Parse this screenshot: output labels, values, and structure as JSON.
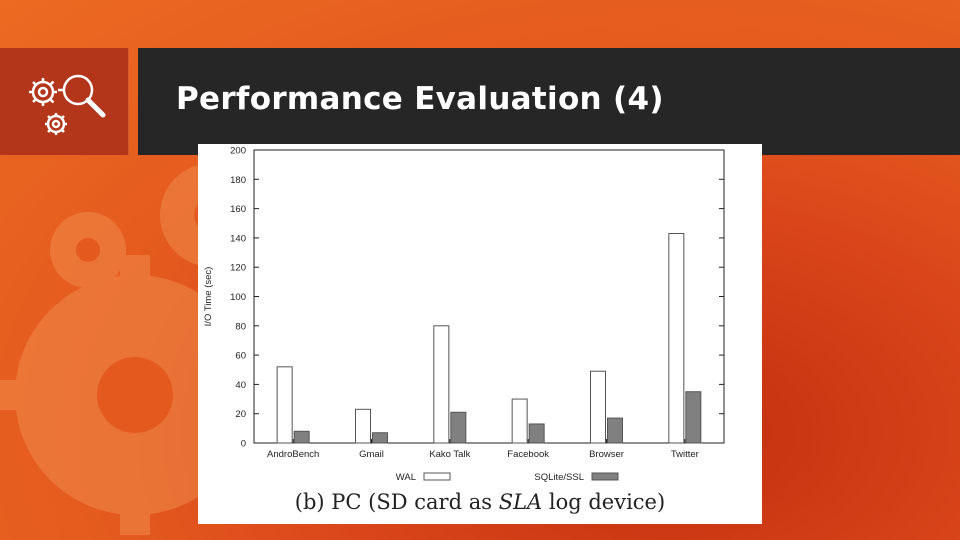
{
  "slide": {
    "title": "Performance Evaluation (4)",
    "icon": "gears-magnifier-icon",
    "colors": {
      "accent": "#e2531c",
      "title_bar": "#262626",
      "icon_box": "#b3361a"
    }
  },
  "caption": {
    "prefix": "(b) PC (SD card as ",
    "emphasis": "SLA",
    "suffix": " log device)"
  },
  "chart_data": {
    "type": "bar",
    "title": "",
    "xlabel": "",
    "ylabel": "I/O Time (sec)",
    "ylim": [
      0,
      200
    ],
    "yticks": [
      0,
      20,
      40,
      60,
      80,
      100,
      120,
      140,
      160,
      180,
      200
    ],
    "categories": [
      "AndroBench",
      "Gmail",
      "Kako Talk",
      "Facebook",
      "Browser",
      "Twitter"
    ],
    "series": [
      {
        "name": "WAL",
        "values": [
          52,
          23,
          80,
          30,
          49,
          143
        ],
        "color": "#ffffff"
      },
      {
        "name": "SQLite/SSL",
        "values": [
          8,
          7,
          21,
          13,
          17,
          35
        ],
        "color": "#808080"
      }
    ],
    "legend": "bottom-center",
    "grid": false
  }
}
